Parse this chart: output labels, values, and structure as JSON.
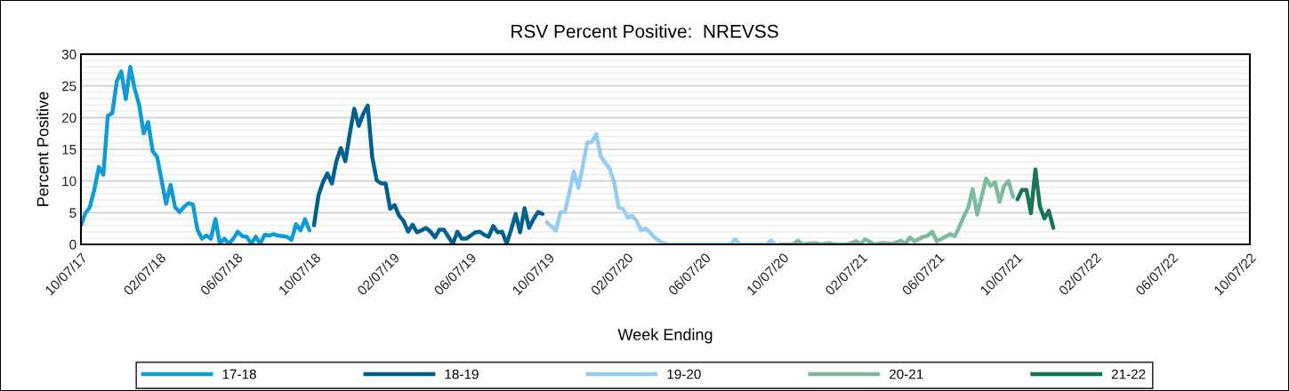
{
  "chart_data": {
    "type": "line",
    "title": "RSV Percent Positive:  NREVSS",
    "xlabel": "Week Ending",
    "ylabel": "Percent Positive",
    "xlim": [
      "2017-10-07",
      "2022-10-07"
    ],
    "xticks": [
      {
        "value": "2017-10-07",
        "label": "10/07/17"
      },
      {
        "value": "2018-02-07",
        "label": "02/07/18"
      },
      {
        "value": "2018-06-07",
        "label": "06/07/18"
      },
      {
        "value": "2018-10-07",
        "label": "10/07/18"
      },
      {
        "value": "2019-02-07",
        "label": "02/07/19"
      },
      {
        "value": "2019-06-07",
        "label": "06/07/19"
      },
      {
        "value": "2019-10-07",
        "label": "10/07/19"
      },
      {
        "value": "2020-02-07",
        "label": "02/07/20"
      },
      {
        "value": "2020-06-07",
        "label": "06/07/20"
      },
      {
        "value": "2020-10-07",
        "label": "10/07/20"
      },
      {
        "value": "2021-02-07",
        "label": "02/07/21"
      },
      {
        "value": "2021-06-07",
        "label": "06/07/21"
      },
      {
        "value": "2021-10-07",
        "label": "10/07/21"
      },
      {
        "value": "2022-02-07",
        "label": "02/07/22"
      },
      {
        "value": "2022-06-07",
        "label": "06/07/22"
      },
      {
        "value": "2022-10-07",
        "label": "10/07/22"
      }
    ],
    "ylim": [
      0,
      30
    ],
    "yticks": [
      0,
      5,
      10,
      15,
      20,
      25,
      30
    ],
    "grid": "y",
    "legend": "bottom",
    "marker": "none",
    "line_style": "solid",
    "series": [
      {
        "name": "17-18",
        "color": "#0e9bd6",
        "x": [
          "2017-10-07",
          "2017-10-14",
          "2017-10-21",
          "2017-10-28",
          "2017-11-04",
          "2017-11-11",
          "2017-11-18",
          "2017-11-25",
          "2017-12-02",
          "2017-12-09",
          "2017-12-16",
          "2017-12-23",
          "2017-12-30",
          "2018-01-06",
          "2018-01-13",
          "2018-01-20",
          "2018-01-27",
          "2018-02-03",
          "2018-02-10",
          "2018-02-17",
          "2018-02-24",
          "2018-03-03",
          "2018-03-10",
          "2018-03-17",
          "2018-03-24",
          "2018-03-31",
          "2018-04-07",
          "2018-04-14",
          "2018-04-21",
          "2018-04-28",
          "2018-05-05",
          "2018-05-12",
          "2018-05-19",
          "2018-05-26",
          "2018-06-02",
          "2018-06-09",
          "2018-06-16",
          "2018-06-23",
          "2018-06-30",
          "2018-07-07",
          "2018-07-14",
          "2018-07-21",
          "2018-07-28",
          "2018-08-04",
          "2018-08-11",
          "2018-08-18",
          "2018-08-25",
          "2018-09-01",
          "2018-09-08",
          "2018-09-15",
          "2018-09-22",
          "2018-09-29"
        ],
        "values": [
          3.0,
          4.9,
          5.9,
          8.7,
          12.2,
          11.0,
          20.3,
          20.7,
          25.7,
          27.3,
          22.9,
          28.0,
          24.5,
          22.0,
          17.5,
          19.3,
          14.7,
          13.8,
          10.1,
          6.4,
          9.4,
          5.9,
          5.1,
          5.9,
          6.5,
          6.3,
          2.3,
          0.9,
          1.4,
          0.9,
          4.0,
          0.1,
          0.9,
          0.1,
          0.9,
          2.0,
          1.3,
          1.2,
          0.1,
          1.2,
          0.1,
          1.5,
          1.4,
          1.6,
          1.4,
          1.3,
          1.2,
          0.7,
          3.2,
          2.2,
          4.0,
          2.2
        ]
      },
      {
        "name": "18-19",
        "color": "#00608f",
        "x": [
          "2018-10-06",
          "2018-10-13",
          "2018-10-20",
          "2018-10-27",
          "2018-11-03",
          "2018-11-10",
          "2018-11-17",
          "2018-11-24",
          "2018-12-01",
          "2018-12-08",
          "2018-12-15",
          "2018-12-22",
          "2018-12-29",
          "2019-01-05",
          "2019-01-12",
          "2019-01-19",
          "2019-01-26",
          "2019-02-02",
          "2019-02-09",
          "2019-02-16",
          "2019-02-23",
          "2019-03-02",
          "2019-03-09",
          "2019-03-16",
          "2019-03-23",
          "2019-03-30",
          "2019-04-06",
          "2019-04-13",
          "2019-04-20",
          "2019-04-27",
          "2019-05-04",
          "2019-05-11",
          "2019-05-18",
          "2019-05-25",
          "2019-06-01",
          "2019-06-08",
          "2019-06-15",
          "2019-06-22",
          "2019-06-29",
          "2019-07-06",
          "2019-07-13",
          "2019-07-20",
          "2019-07-27",
          "2019-08-03",
          "2019-08-10",
          "2019-08-17",
          "2019-08-24",
          "2019-08-31",
          "2019-09-07",
          "2019-09-14",
          "2019-09-21",
          "2019-09-28"
        ],
        "values": [
          3.0,
          7.7,
          9.8,
          11.2,
          9.6,
          13.1,
          15.2,
          13.1,
          17.5,
          21.4,
          18.7,
          20.6,
          21.9,
          13.8,
          10.1,
          9.6,
          9.6,
          5.6,
          6.2,
          4.5,
          3.7,
          2.0,
          3.1,
          1.9,
          2.2,
          2.6,
          2.0,
          1.1,
          2.3,
          2.3,
          1.2,
          0.1,
          2.0,
          0.9,
          0.9,
          1.4,
          1.9,
          2.0,
          1.5,
          1.2,
          2.9,
          1.9,
          2.0,
          0.1,
          2.3,
          4.8,
          1.9,
          5.7,
          2.6,
          4.0,
          5.1,
          4.8
        ]
      },
      {
        "name": "19-20",
        "color": "#94cdf0",
        "x": [
          "2019-10-05",
          "2019-10-12",
          "2019-10-19",
          "2019-10-26",
          "2019-11-02",
          "2019-11-09",
          "2019-11-16",
          "2019-11-23",
          "2019-11-30",
          "2019-12-07",
          "2019-12-14",
          "2019-12-21",
          "2019-12-28",
          "2020-01-04",
          "2020-01-11",
          "2020-01-18",
          "2020-01-25",
          "2020-02-01",
          "2020-02-08",
          "2020-02-15",
          "2020-02-22",
          "2020-02-29",
          "2020-03-07",
          "2020-03-14",
          "2020-03-21",
          "2020-03-28",
          "2020-04-04",
          "2020-04-11",
          "2020-07-18",
          "2020-07-25",
          "2020-08-01",
          "2020-09-12",
          "2020-09-19",
          "2020-09-26"
        ],
        "values": [
          3.5,
          2.8,
          2.2,
          5.1,
          5.1,
          8.2,
          11.5,
          8.9,
          12.4,
          16.1,
          16.1,
          17.4,
          13.9,
          12.9,
          11.9,
          9.8,
          5.8,
          5.6,
          4.2,
          4.5,
          3.7,
          2.2,
          2.5,
          1.9,
          1.1,
          0.6,
          0.2,
          0,
          0,
          0.8,
          0,
          0,
          0.6,
          0
        ]
      },
      {
        "name": "20-21",
        "color": "#7cbb9c",
        "x": [
          "2020-10-03",
          "2020-10-24",
          "2020-10-31",
          "2020-11-07",
          "2020-11-14",
          "2020-11-28",
          "2020-12-05",
          "2020-12-19",
          "2020-12-26",
          "2021-01-16",
          "2021-01-30",
          "2021-02-06",
          "2021-02-13",
          "2021-02-27",
          "2021-03-13",
          "2021-03-27",
          "2021-04-10",
          "2021-04-17",
          "2021-04-24",
          "2021-05-01",
          "2021-05-15",
          "2021-05-22",
          "2021-05-29",
          "2021-06-05",
          "2021-06-26",
          "2021-07-03",
          "2021-07-10",
          "2021-07-17",
          "2021-07-24",
          "2021-07-31",
          "2021-08-07",
          "2021-08-14",
          "2021-08-21",
          "2021-08-28",
          "2021-09-04",
          "2021-09-11",
          "2021-09-18",
          "2021-09-25",
          "2021-10-02"
        ],
        "values": [
          0,
          0,
          0.6,
          0,
          0.1,
          0.2,
          0,
          0.2,
          0,
          0,
          0.5,
          0.1,
          0.8,
          0,
          0.2,
          0.1,
          0.6,
          0.1,
          1.1,
          0.5,
          1.2,
          1.4,
          2.0,
          0.5,
          1.6,
          1.3,
          2.7,
          4.4,
          5.8,
          8.7,
          4.7,
          7.5,
          10.4,
          9.2,
          9.8,
          6.7,
          9.2,
          10.0,
          7.5
        ]
      },
      {
        "name": "21-22",
        "color": "#167752",
        "x": [
          "2021-10-09",
          "2021-10-16",
          "2021-10-23",
          "2021-10-30",
          "2021-11-06",
          "2021-11-13",
          "2021-11-20",
          "2021-11-27",
          "2021-12-04"
        ],
        "values": [
          7.1,
          8.6,
          8.6,
          4.9,
          11.8,
          6.0,
          4.1,
          5.3,
          2.6
        ]
      }
    ]
  }
}
